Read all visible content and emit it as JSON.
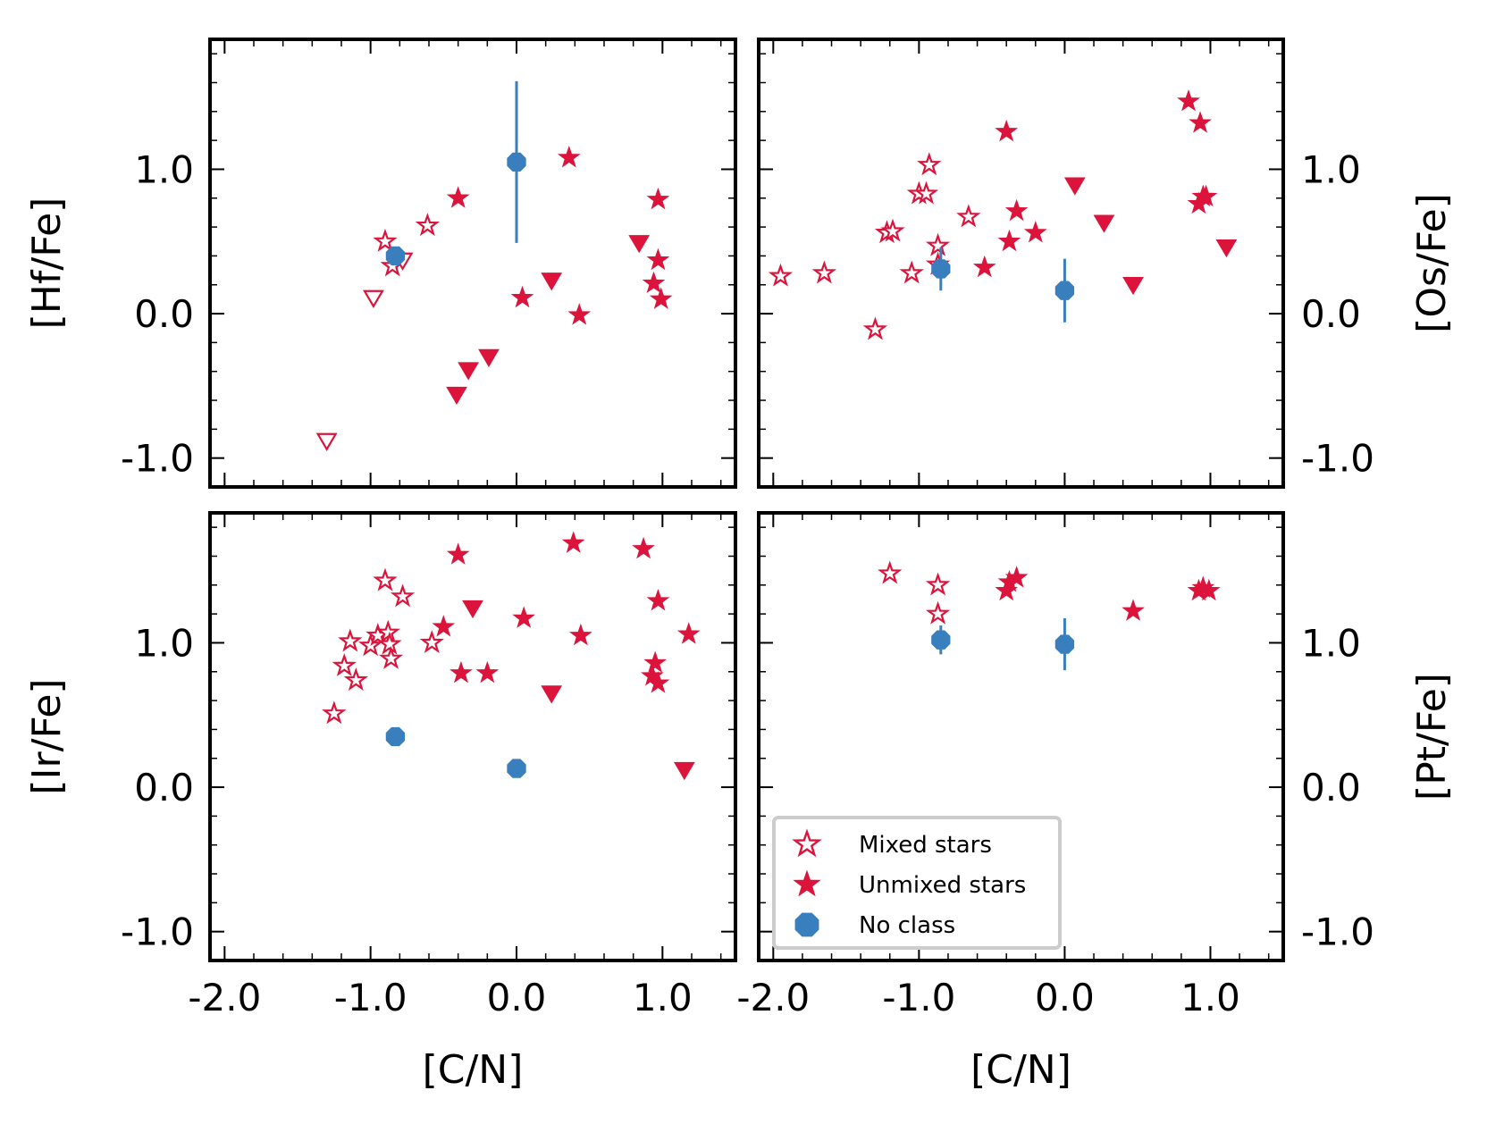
{
  "chart_data": [
    {
      "type": "scatter",
      "title": "",
      "xlabel": "",
      "ylabel": "[Hf/Fe]",
      "ylabel_side": "left",
      "xlim": [
        -2.1,
        1.5
      ],
      "ylim": [
        -1.2,
        1.9
      ],
      "xticks": [
        -2.0,
        -1.0,
        0.0,
        1.0
      ],
      "xtick_labels": [],
      "yticks": [
        -1.0,
        0.0,
        1.0
      ],
      "ytick_labels": [
        "-1.0",
        "0.0",
        "1.0"
      ],
      "series": [
        {
          "name": "Mixed stars",
          "points": [
            [
              -0.9,
              0.5
            ],
            [
              -0.85,
              0.33
            ],
            [
              -0.61,
              0.61
            ]
          ]
        },
        {
          "name": "Mixed stars (upper limits)",
          "points": [
            [
              -1.3,
              -0.88
            ],
            [
              -0.98,
              0.11
            ],
            [
              -0.78,
              0.37
            ]
          ]
        },
        {
          "name": "Unmixed stars",
          "points": [
            [
              -0.4,
              0.8
            ],
            [
              0.36,
              1.08
            ],
            [
              0.04,
              0.11
            ],
            [
              0.43,
              -0.01
            ],
            [
              0.97,
              0.79
            ],
            [
              0.97,
              0.37
            ],
            [
              0.94,
              0.21
            ],
            [
              0.99,
              0.1
            ]
          ]
        },
        {
          "name": "Unmixed stars (upper limits)",
          "points": [
            [
              -0.41,
              -0.56
            ],
            [
              -0.33,
              -0.39
            ],
            [
              -0.19,
              -0.3
            ],
            [
              0.24,
              0.23
            ],
            [
              0.84,
              0.49
            ]
          ]
        },
        {
          "name": "No class",
          "points": [
            [
              -0.83,
              0.4
            ],
            [
              0.0,
              1.05
            ]
          ],
          "errors": [
            0.0,
            0.56
          ]
        }
      ]
    },
    {
      "type": "scatter",
      "title": "",
      "xlabel": "",
      "ylabel": "[Os/Fe]",
      "ylabel_side": "right",
      "xlim": [
        -2.1,
        1.5
      ],
      "ylim": [
        -1.2,
        1.9
      ],
      "xticks": [
        -2.0,
        -1.0,
        0.0,
        1.0
      ],
      "xtick_labels": [],
      "yticks": [
        -1.0,
        0.0,
        1.0
      ],
      "ytick_labels": [
        "-1.0",
        "0.0",
        "1.0"
      ],
      "series": [
        {
          "name": "Mixed stars",
          "points": [
            [
              -1.95,
              0.26
            ],
            [
              -1.65,
              0.28
            ],
            [
              -1.3,
              -0.11
            ],
            [
              -1.22,
              0.56
            ],
            [
              -1.18,
              0.57
            ],
            [
              -1.05,
              0.28
            ],
            [
              -1.0,
              0.83
            ],
            [
              -0.95,
              0.83
            ],
            [
              -0.93,
              1.03
            ],
            [
              -0.87,
              0.47
            ],
            [
              -0.87,
              0.34
            ],
            [
              -0.66,
              0.67
            ]
          ]
        },
        {
          "name": "Unmixed stars",
          "points": [
            [
              -0.55,
              0.32
            ],
            [
              -0.4,
              1.26
            ],
            [
              -0.38,
              0.5
            ],
            [
              -0.33,
              0.71
            ],
            [
              -0.2,
              0.56
            ],
            [
              0.85,
              1.47
            ],
            [
              0.93,
              1.32
            ],
            [
              0.92,
              0.76
            ],
            [
              0.95,
              0.81
            ],
            [
              0.97,
              0.81
            ]
          ]
        },
        {
          "name": "Unmixed stars (upper limits)",
          "points": [
            [
              0.07,
              0.89
            ],
            [
              0.27,
              0.63
            ],
            [
              0.47,
              0.2
            ],
            [
              1.11,
              0.46
            ]
          ]
        },
        {
          "name": "No class",
          "points": [
            [
              -0.85,
              0.31
            ],
            [
              0.0,
              0.16
            ]
          ],
          "errors": [
            0.15,
            0.22
          ]
        }
      ]
    },
    {
      "type": "scatter",
      "title": "",
      "xlabel": "[C/N]",
      "ylabel": "[Ir/Fe]",
      "ylabel_side": "left",
      "xlim": [
        -2.1,
        1.5
      ],
      "ylim": [
        -1.2,
        1.9
      ],
      "xticks": [
        -2.0,
        -1.0,
        0.0,
        1.0
      ],
      "xtick_labels": [
        "-2.0",
        "-1.0",
        "0.0",
        "1.0"
      ],
      "yticks": [
        -1.0,
        0.0,
        1.0
      ],
      "ytick_labels": [
        "-1.0",
        "0.0",
        "1.0"
      ],
      "series": [
        {
          "name": "Mixed stars",
          "points": [
            [
              -1.25,
              0.51
            ],
            [
              -1.18,
              0.84
            ],
            [
              -1.14,
              1.01
            ],
            [
              -1.1,
              0.74
            ],
            [
              -1.0,
              0.98
            ],
            [
              -0.95,
              1.05
            ],
            [
              -0.9,
              1.43
            ],
            [
              -0.88,
              1.07
            ],
            [
              -0.87,
              0.99
            ],
            [
              -0.86,
              0.89
            ],
            [
              -0.78,
              1.32
            ],
            [
              -0.58,
              1.0
            ]
          ]
        },
        {
          "name": "Unmixed stars",
          "points": [
            [
              -0.5,
              1.11
            ],
            [
              -0.4,
              1.61
            ],
            [
              -0.38,
              0.79
            ],
            [
              -0.2,
              0.79
            ],
            [
              0.05,
              1.17
            ],
            [
              0.39,
              1.69
            ],
            [
              0.44,
              1.05
            ],
            [
              0.87,
              1.65
            ],
            [
              0.93,
              0.77
            ],
            [
              0.95,
              0.86
            ],
            [
              0.97,
              0.72
            ],
            [
              0.97,
              1.29
            ],
            [
              1.18,
              1.06
            ]
          ]
        },
        {
          "name": "Unmixed stars (upper limits)",
          "points": [
            [
              -0.3,
              1.24
            ],
            [
              0.24,
              0.65
            ],
            [
              1.15,
              0.12
            ]
          ]
        },
        {
          "name": "No class",
          "points": [
            [
              -0.83,
              0.35
            ],
            [
              0.0,
              0.13
            ]
          ],
          "errors": [
            0.0,
            0.0
          ]
        }
      ]
    },
    {
      "type": "scatter",
      "title": "",
      "xlabel": "[C/N]",
      "ylabel": "[Pt/Fe]",
      "ylabel_side": "right",
      "xlim": [
        -2.1,
        1.5
      ],
      "ylim": [
        -1.2,
        1.9
      ],
      "xticks": [
        -2.0,
        -1.0,
        0.0,
        1.0
      ],
      "xtick_labels": [
        "-2.0",
        "-1.0",
        "0.0",
        "1.0"
      ],
      "yticks": [
        -1.0,
        0.0,
        1.0
      ],
      "ytick_labels": [
        "-1.0",
        "0.0",
        "1.0"
      ],
      "legend": {
        "placement": "lower-left",
        "entries": [
          "Mixed stars",
          "Unmixed stars",
          "No class"
        ]
      },
      "series": [
        {
          "name": "Mixed stars",
          "points": [
            [
              -1.2,
              1.48
            ],
            [
              -0.87,
              1.4
            ],
            [
              -0.87,
              1.2
            ]
          ]
        },
        {
          "name": "Unmixed stars",
          "points": [
            [
              -0.4,
              1.36
            ],
            [
              -0.38,
              1.42
            ],
            [
              -0.33,
              1.45
            ],
            [
              0.47,
              1.22
            ],
            [
              0.92,
              1.36
            ],
            [
              0.95,
              1.38
            ],
            [
              0.99,
              1.36
            ]
          ]
        },
        {
          "name": "No class",
          "points": [
            [
              -0.85,
              1.02
            ],
            [
              0.0,
              0.99
            ]
          ],
          "errors": [
            0.1,
            0.18
          ]
        }
      ]
    }
  ],
  "colors": {
    "red": "#DC143C",
    "blue": "#3A7FBD",
    "axis": "#000000"
  }
}
